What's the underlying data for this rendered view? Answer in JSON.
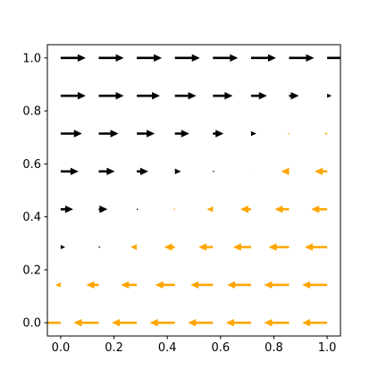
{
  "chart_data": {
    "type": "quiver",
    "x": [
      0,
      0.1429,
      0.2857,
      0.4286,
      0.5714,
      0.7143,
      0.8571,
      1
    ],
    "y": [
      0,
      0.1429,
      0.2857,
      0.4286,
      0.5714,
      0.7143,
      0.8571,
      1
    ],
    "u": [
      [
        -0.094,
        -0.094,
        -0.094,
        -0.094,
        -0.094,
        -0.094,
        -0.094,
        -0.094
      ],
      [
        -0.02,
        -0.047,
        -0.06,
        -0.074,
        -0.084,
        -0.09,
        -0.094,
        -0.094
      ],
      [
        0.017,
        0.007,
        -0.023,
        -0.04,
        -0.054,
        -0.067,
        -0.077,
        -0.084
      ],
      [
        0.047,
        0.033,
        0.007,
        -0.007,
        -0.023,
        -0.04,
        -0.054,
        -0.06
      ],
      [
        0.067,
        0.06,
        0.043,
        0.023,
        0.007,
        -0.003,
        -0.03,
        -0.047
      ],
      [
        0.08,
        0.074,
        0.067,
        0.054,
        0.04,
        0.02,
        -0.007,
        -0.01
      ],
      [
        0.094,
        0.094,
        0.087,
        0.08,
        0.074,
        0.06,
        0.037,
        0.017
      ],
      [
        0.094,
        0.094,
        0.094,
        0.094,
        0.094,
        0.094,
        0.094,
        0.094
      ]
    ],
    "colors": [
      "#000000",
      "#ffa500"
    ],
    "xlim": [
      -0.05,
      1.05
    ],
    "ylim": [
      -0.05,
      1.05
    ],
    "xticks": [
      {
        "value": 0,
        "label": "0.0"
      },
      {
        "value": 0.2,
        "label": "0.2"
      },
      {
        "value": 0.4,
        "label": "0.4"
      },
      {
        "value": 0.6,
        "label": "0.6"
      },
      {
        "value": 0.8,
        "label": "0.8"
      },
      {
        "value": 1,
        "label": "1.0"
      }
    ],
    "yticks": [
      {
        "value": 0,
        "label": "0.0"
      },
      {
        "value": 0.2,
        "label": "0.2"
      },
      {
        "value": 0.4,
        "label": "0.4"
      },
      {
        "value": 0.6,
        "label": "0.6"
      },
      {
        "value": 0.8,
        "label": "0.8"
      },
      {
        "value": 1,
        "label": "1.0"
      }
    ]
  }
}
